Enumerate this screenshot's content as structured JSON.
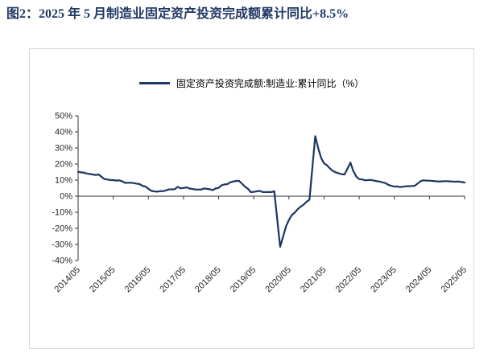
{
  "header": {
    "title": "图2：2025 年 5 月制造业固定资产投资完成额累计同比+8.5%"
  },
  "colors": {
    "accent": "#1F3864",
    "line": "#1F3864",
    "axis": "#333333",
    "border": "#D9D9D9",
    "tick_text": "#262626"
  },
  "chart_data": {
    "type": "line",
    "title": "制造业固定资产投资完成额累计同比",
    "legend_position": "top",
    "grid": false,
    "ylim": [
      -40,
      50
    ],
    "yticks": [
      50,
      40,
      30,
      20,
      10,
      0,
      -10,
      -20,
      -30,
      -40
    ],
    "ytick_labels": [
      "50%",
      "40%",
      "30%",
      "20%",
      "10%",
      "0%",
      "-10%",
      "-20%",
      "-30%",
      "-40%"
    ],
    "x_tick_labels": [
      "2014/05",
      "2015/05",
      "2016/05",
      "2017/05",
      "2018/05",
      "2019/05",
      "2020/05",
      "2021/05",
      "2022/05",
      "2023/05",
      "2024/05",
      "2025/05"
    ],
    "series": [
      {
        "name": "固定资产投资完成额:制造业:累计同比（%）",
        "points": [
          [
            "2014/05",
            15.2
          ],
          [
            "2014/06",
            14.8
          ],
          [
            "2014/07",
            14.6
          ],
          [
            "2014/08",
            14.1
          ],
          [
            "2014/09",
            13.8
          ],
          [
            "2014/10",
            13.5
          ],
          [
            "2014/11",
            13.2
          ],
          [
            "2014/12",
            13.5
          ],
          [
            "2015/02",
            10.6
          ],
          [
            "2015/03",
            10.4
          ],
          [
            "2015/04",
            10.0
          ],
          [
            "2015/05",
            10.0
          ],
          [
            "2015/06",
            9.7
          ],
          [
            "2015/07",
            9.9
          ],
          [
            "2015/08",
            9.3
          ],
          [
            "2015/09",
            8.3
          ],
          [
            "2015/10",
            8.3
          ],
          [
            "2015/11",
            8.4
          ],
          [
            "2015/12",
            8.1
          ],
          [
            "2016/02",
            7.5
          ],
          [
            "2016/03",
            6.4
          ],
          [
            "2016/04",
            6.0
          ],
          [
            "2016/05",
            4.6
          ],
          [
            "2016/06",
            3.3
          ],
          [
            "2016/07",
            3.0
          ],
          [
            "2016/08",
            2.8
          ],
          [
            "2016/09",
            3.1
          ],
          [
            "2016/10",
            3.1
          ],
          [
            "2016/11",
            3.6
          ],
          [
            "2016/12",
            4.2
          ],
          [
            "2017/02",
            4.3
          ],
          [
            "2017/03",
            5.8
          ],
          [
            "2017/04",
            4.9
          ],
          [
            "2017/05",
            5.1
          ],
          [
            "2017/06",
            5.5
          ],
          [
            "2017/07",
            4.8
          ],
          [
            "2017/08",
            4.5
          ],
          [
            "2017/09",
            4.2
          ],
          [
            "2017/10",
            4.1
          ],
          [
            "2017/11",
            4.1
          ],
          [
            "2017/12",
            4.8
          ],
          [
            "2018/02",
            4.3
          ],
          [
            "2018/03",
            3.8
          ],
          [
            "2018/04",
            4.8
          ],
          [
            "2018/05",
            5.2
          ],
          [
            "2018/06",
            6.8
          ],
          [
            "2018/07",
            7.3
          ],
          [
            "2018/08",
            7.5
          ],
          [
            "2018/09",
            8.7
          ],
          [
            "2018/10",
            9.1
          ],
          [
            "2018/11",
            9.5
          ],
          [
            "2018/12",
            9.5
          ],
          [
            "2019/02",
            5.9
          ],
          [
            "2019/03",
            4.6
          ],
          [
            "2019/04",
            2.5
          ],
          [
            "2019/05",
            2.7
          ],
          [
            "2019/06",
            3.0
          ],
          [
            "2019/07",
            3.3
          ],
          [
            "2019/08",
            2.6
          ],
          [
            "2019/09",
            2.5
          ],
          [
            "2019/10",
            2.6
          ],
          [
            "2019/11",
            2.5
          ],
          [
            "2019/12",
            3.1
          ],
          [
            "2020/02",
            -31.5
          ],
          [
            "2020/03",
            -25.2
          ],
          [
            "2020/04",
            -18.8
          ],
          [
            "2020/05",
            -14.8
          ],
          [
            "2020/06",
            -11.7
          ],
          [
            "2020/07",
            -10.2
          ],
          [
            "2020/08",
            -8.1
          ],
          [
            "2020/09",
            -6.5
          ],
          [
            "2020/10",
            -5.3
          ],
          [
            "2020/11",
            -3.5
          ],
          [
            "2020/12",
            -2.2
          ],
          [
            "2021/02",
            37.3
          ],
          [
            "2021/03",
            29.8
          ],
          [
            "2021/04",
            23.8
          ],
          [
            "2021/05",
            20.4
          ],
          [
            "2021/06",
            19.2
          ],
          [
            "2021/07",
            17.3
          ],
          [
            "2021/08",
            15.7
          ],
          [
            "2021/09",
            14.8
          ],
          [
            "2021/10",
            14.2
          ],
          [
            "2021/11",
            13.7
          ],
          [
            "2021/12",
            13.5
          ],
          [
            "2022/02",
            20.9
          ],
          [
            "2022/03",
            15.6
          ],
          [
            "2022/04",
            12.2
          ],
          [
            "2022/05",
            10.6
          ],
          [
            "2022/06",
            10.4
          ],
          [
            "2022/07",
            9.9
          ],
          [
            "2022/08",
            10.0
          ],
          [
            "2022/09",
            10.1
          ],
          [
            "2022/10",
            9.7
          ],
          [
            "2022/11",
            9.3
          ],
          [
            "2022/12",
            9.1
          ],
          [
            "2023/02",
            8.1
          ],
          [
            "2023/03",
            7.0
          ],
          [
            "2023/04",
            6.4
          ],
          [
            "2023/05",
            6.0
          ],
          [
            "2023/06",
            6.0
          ],
          [
            "2023/07",
            5.7
          ],
          [
            "2023/08",
            5.9
          ],
          [
            "2023/09",
            6.2
          ],
          [
            "2023/10",
            6.2
          ],
          [
            "2023/11",
            6.3
          ],
          [
            "2023/12",
            6.5
          ],
          [
            "2024/02",
            9.4
          ],
          [
            "2024/03",
            9.9
          ],
          [
            "2024/04",
            9.7
          ],
          [
            "2024/05",
            9.6
          ],
          [
            "2024/06",
            9.5
          ],
          [
            "2024/07",
            9.3
          ],
          [
            "2024/08",
            9.1
          ],
          [
            "2024/09",
            9.2
          ],
          [
            "2024/10",
            9.3
          ],
          [
            "2024/11",
            9.3
          ],
          [
            "2024/12",
            9.2
          ],
          [
            "2025/02",
            9.0
          ],
          [
            "2025/03",
            9.1
          ],
          [
            "2025/04",
            8.8
          ],
          [
            "2025/05",
            8.5
          ]
        ]
      }
    ]
  }
}
